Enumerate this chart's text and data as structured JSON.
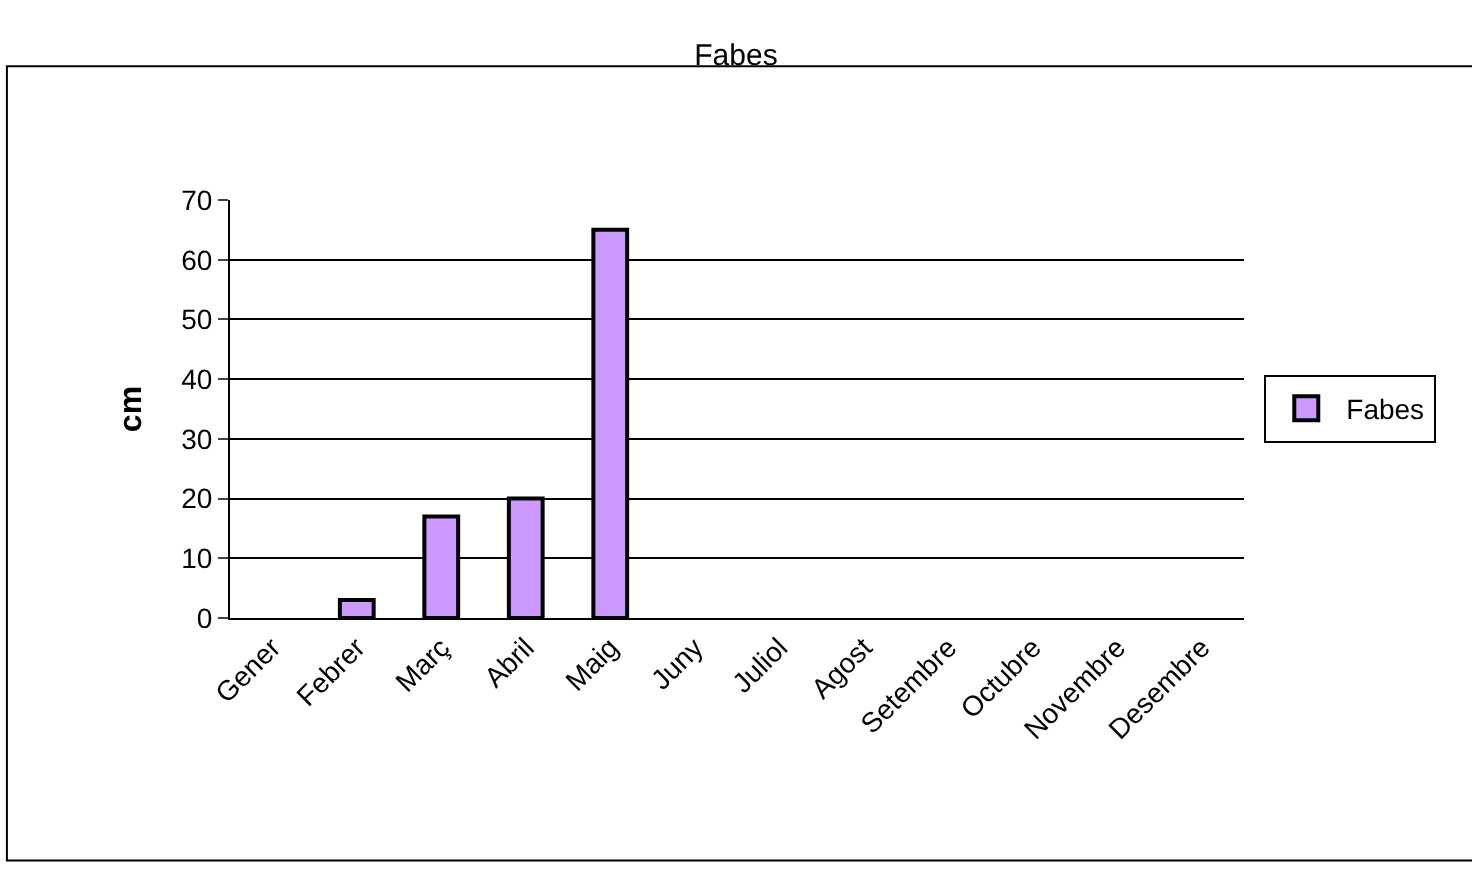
{
  "chart_data": {
    "type": "bar",
    "title": "Fabes",
    "ylabel": "cm",
    "categories": [
      "Gener",
      "Febrer",
      "Març",
      "Abril",
      "Maig",
      "Juny",
      "Juliol",
      "Agost",
      "Setembre",
      "Octubre",
      "Novembre",
      "Desembre"
    ],
    "series": [
      {
        "name": "Fabes",
        "color": "#cc99ff",
        "values": [
          null,
          3,
          17,
          20,
          65,
          null,
          null,
          null,
          null,
          null,
          null,
          null
        ]
      }
    ],
    "ylim": [
      0,
      70
    ],
    "yticks": [
      0,
      10,
      20,
      30,
      40,
      50,
      60,
      70
    ],
    "grid": "y",
    "legend": "right"
  }
}
